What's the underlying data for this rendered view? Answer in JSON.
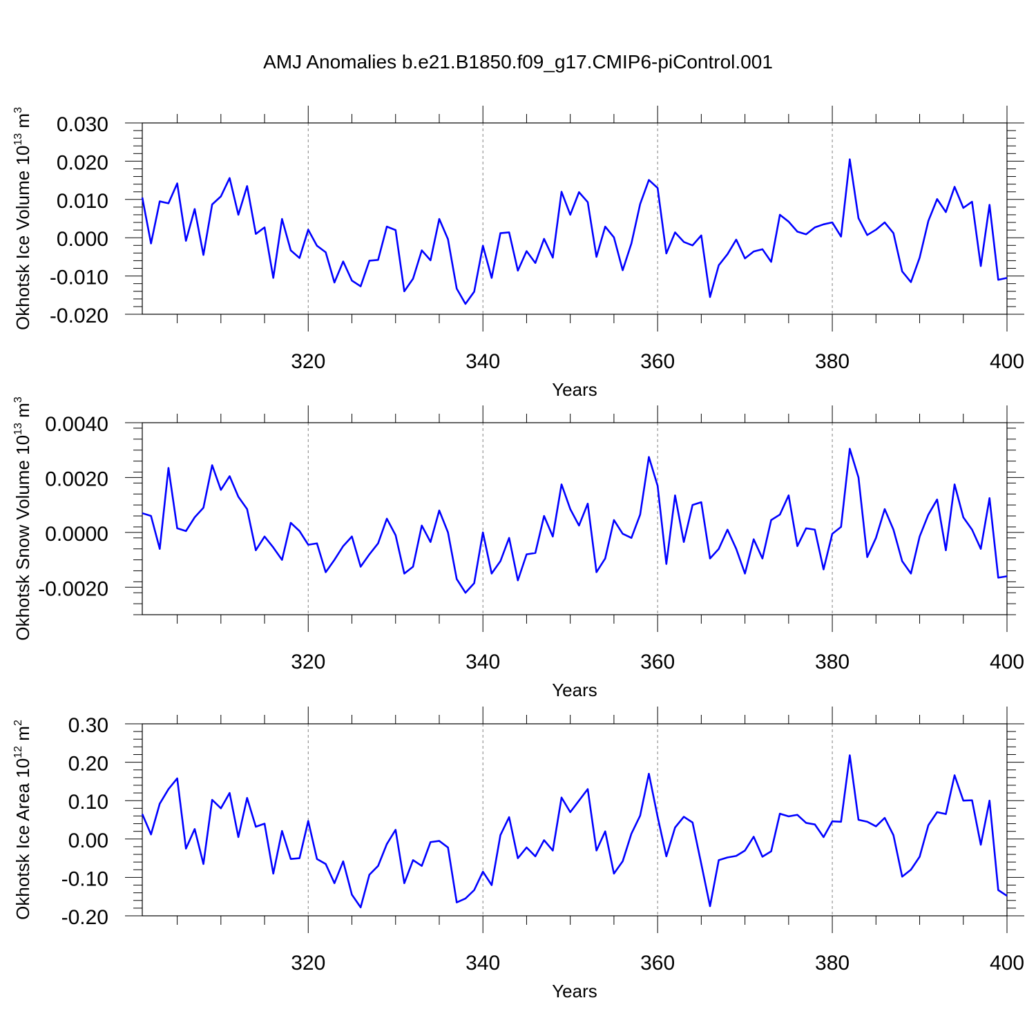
{
  "title": "AMJ Anomalies b.e21.B1850.f09_g17.CMIP6-piControl.001",
  "colors": {
    "line": "#0000ff",
    "axis": "#000000",
    "grid": "#808080"
  },
  "chart_data": [
    {
      "type": "line",
      "xlabel": "Years",
      "ylabel": {
        "main": "Okhotsk Ice Volume 10",
        "sup": "13",
        "unit": " m",
        "unit_sup": "3"
      },
      "xlim": [
        301,
        400
      ],
      "ylim": [
        -0.02,
        0.03
      ],
      "yticks": [
        "0.030",
        "0.020",
        "0.010",
        "0.000",
        "-0.010",
        "-0.020"
      ],
      "ytick_values": [
        0.03,
        0.02,
        0.01,
        0.0,
        -0.01,
        -0.02
      ],
      "xticks": [
        "320",
        "340",
        "360",
        "380",
        "400"
      ],
      "xtick_values": [
        320,
        340,
        360,
        380,
        400
      ],
      "grid": "vertical dashed at major x ticks",
      "x_start": 301,
      "values": [
        0.0105,
        -0.0015,
        0.0095,
        0.009,
        0.0142,
        -0.0008,
        0.0075,
        -0.0045,
        0.0087,
        0.0108,
        0.0156,
        0.006,
        0.0135,
        0.001,
        0.0027,
        -0.0105,
        0.0049,
        -0.0033,
        -0.0053,
        0.0021,
        -0.0021,
        -0.0038,
        -0.0117,
        -0.0062,
        -0.0112,
        -0.0127,
        -0.006,
        -0.0058,
        0.0029,
        0.002,
        -0.014,
        -0.0107,
        -0.0033,
        -0.0059,
        0.0049,
        -0.0004,
        -0.0133,
        -0.0173,
        -0.0141,
        -0.0021,
        -0.0105,
        0.0012,
        0.0014,
        -0.0086,
        -0.0035,
        -0.0066,
        -0.0003,
        -0.0052,
        0.012,
        0.006,
        0.0119,
        0.0093,
        -0.005,
        0.0029,
        0.0001,
        -0.0085,
        -0.0015,
        0.0088,
        0.0151,
        0.013,
        -0.0041,
        0.0014,
        -0.0011,
        -0.002,
        0.0006,
        -0.0155,
        -0.0072,
        -0.0043,
        -0.0005,
        -0.0054,
        -0.0036,
        -0.003,
        -0.0063,
        0.006,
        0.0042,
        0.0016,
        0.0009,
        0.0027,
        0.0035,
        0.004,
        0.0003,
        0.0205,
        0.0051,
        0.0007,
        0.0021,
        0.004,
        0.0012,
        -0.0088,
        -0.0116,
        -0.0052,
        0.0044,
        0.0101,
        0.0067,
        0.0133,
        0.0078,
        0.0094,
        -0.0074,
        0.0086,
        -0.011,
        -0.0105
      ]
    },
    {
      "type": "line",
      "xlabel": "Years",
      "ylabel": {
        "main": "Okhotsk Snow Volume 10",
        "sup": "13",
        "unit": " m",
        "unit_sup": "3"
      },
      "xlim": [
        301,
        400
      ],
      "ylim": [
        -0.003,
        0.004
      ],
      "yticks": [
        "0.0040",
        "0.0020",
        "0.0000",
        "-0.0020"
      ],
      "ytick_values": [
        0.004,
        0.002,
        0.0,
        -0.002
      ],
      "xticks": [
        "320",
        "340",
        "360",
        "380",
        "400"
      ],
      "xtick_values": [
        320,
        340,
        360,
        380,
        400
      ],
      "grid": "vertical dashed at major x ticks",
      "x_start": 301,
      "values": [
        0.0007,
        0.0006,
        -0.0006,
        0.00235,
        0.00015,
        5e-05,
        0.00055,
        0.0009,
        0.00245,
        0.00155,
        0.00205,
        0.0013,
        0.00085,
        -0.00065,
        -0.00015,
        -0.00055,
        -0.001,
        0.00035,
        5e-05,
        -0.00045,
        -0.0004,
        -0.00145,
        -0.001,
        -0.0005,
        -0.00015,
        -0.00125,
        -0.0008,
        -0.0004,
        0.0005,
        -0.0001,
        -0.0015,
        -0.00125,
        0.00025,
        -0.00035,
        0.0008,
        0.0,
        -0.0017,
        -0.0022,
        -0.00185,
        0.0,
        -0.0015,
        -0.00105,
        -0.0002,
        -0.00175,
        -0.0008,
        -0.00075,
        0.0006,
        -0.00015,
        0.00175,
        0.00085,
        0.00025,
        0.00105,
        -0.00145,
        -0.00095,
        0.00045,
        -5e-05,
        -0.0002,
        0.00065,
        0.00275,
        0.0017,
        -0.00115,
        0.00135,
        -0.00035,
        0.001,
        0.0011,
        -0.00095,
        -0.0006,
        0.0001,
        -0.0006,
        -0.0015,
        -0.00025,
        -0.00095,
        0.00045,
        0.00065,
        0.00135,
        -0.0005,
        0.00015,
        0.0001,
        -0.00135,
        -5e-05,
        0.0002,
        0.00305,
        0.002,
        -0.0009,
        -0.0002,
        0.00085,
        0.0001,
        -0.00105,
        -0.0015,
        -0.00015,
        0.00065,
        0.0012,
        -0.00065,
        0.00175,
        0.00055,
        0.0001,
        -0.0006,
        0.00125,
        -0.00165,
        -0.0016
      ]
    },
    {
      "type": "line",
      "xlabel": "Years",
      "ylabel": {
        "main": "Okhotsk Ice Area 10",
        "sup": "12",
        "unit": " m",
        "unit_sup": "2"
      },
      "xlim": [
        301,
        400
      ],
      "ylim": [
        -0.2,
        0.3
      ],
      "yticks": [
        "0.30",
        "0.20",
        "0.10",
        "0.00",
        "-0.10",
        "-0.20"
      ],
      "ytick_values": [
        0.3,
        0.2,
        0.1,
        0.0,
        -0.1,
        -0.2
      ],
      "xticks": [
        "320",
        "340",
        "360",
        "380",
        "400"
      ],
      "xtick_values": [
        320,
        340,
        360,
        380,
        400
      ],
      "grid": "vertical dashed at major x ticks",
      "x_start": 301,
      "values": [
        0.065,
        0.012,
        0.092,
        0.13,
        0.158,
        -0.025,
        0.026,
        -0.065,
        0.102,
        0.08,
        0.12,
        0.005,
        0.107,
        0.032,
        0.04,
        -0.09,
        0.021,
        -0.052,
        -0.05,
        0.047,
        -0.052,
        -0.065,
        -0.115,
        -0.058,
        -0.145,
        -0.178,
        -0.093,
        -0.07,
        -0.013,
        0.024,
        -0.115,
        -0.055,
        -0.07,
        -0.008,
        -0.005,
        -0.022,
        -0.165,
        -0.155,
        -0.133,
        -0.085,
        -0.12,
        0.01,
        0.057,
        -0.05,
        -0.022,
        -0.045,
        -0.003,
        -0.03,
        0.108,
        0.07,
        0.1,
        0.13,
        -0.03,
        0.02,
        -0.09,
        -0.058,
        0.014,
        0.061,
        0.17,
        0.058,
        -0.045,
        0.03,
        0.058,
        0.043,
        -0.065,
        -0.175,
        -0.055,
        -0.048,
        -0.044,
        -0.03,
        0.006,
        -0.046,
        -0.032,
        0.066,
        0.059,
        0.063,
        0.042,
        0.038,
        0.005,
        0.046,
        0.045,
        0.218,
        0.05,
        0.045,
        0.033,
        0.055,
        0.01,
        -0.098,
        -0.08,
        -0.046,
        0.036,
        0.07,
        0.065,
        0.166,
        0.1,
        0.101,
        -0.015,
        0.1,
        -0.133,
        -0.148
      ]
    }
  ]
}
